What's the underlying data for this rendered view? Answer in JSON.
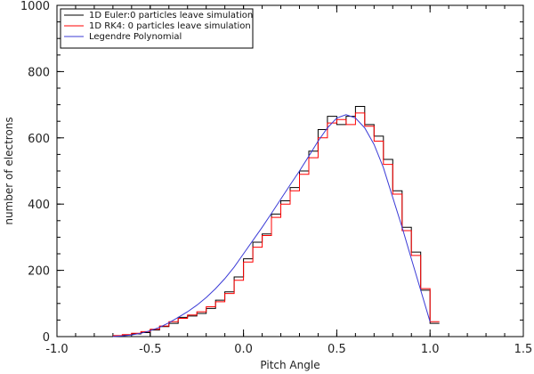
{
  "chart_data": {
    "type": "line",
    "xlabel": "Pitch Angle",
    "ylabel": "number of electrons",
    "xlim": [
      -1.0,
      1.5
    ],
    "ylim": [
      0,
      1000
    ],
    "x_ticks": [
      "-1.0",
      "-0.5",
      "0.0",
      "0.5",
      "1.0",
      "1.5"
    ],
    "y_ticks": [
      "0",
      "200",
      "400",
      "600",
      "800",
      "1000"
    ],
    "legend_position": "top-left",
    "bin_edges": [
      -0.7,
      -0.65,
      -0.6,
      -0.55,
      -0.5,
      -0.45,
      -0.4,
      -0.35,
      -0.3,
      -0.25,
      -0.2,
      -0.15,
      -0.1,
      -0.05,
      0.0,
      0.05,
      0.1,
      0.15,
      0.2,
      0.25,
      0.3,
      0.35,
      0.4,
      0.45,
      0.5,
      0.55,
      0.6,
      0.65,
      0.7,
      0.75,
      0.8,
      0.85,
      0.9,
      0.95,
      1.0
    ],
    "series": [
      {
        "name": "1D Euler:0 particles leave simulation",
        "color": "#000000",
        "style": "step",
        "values": [
          2,
          5,
          8,
          12,
          20,
          30,
          40,
          58,
          62,
          70,
          85,
          110,
          135,
          180,
          235,
          285,
          310,
          370,
          410,
          450,
          500,
          560,
          625,
          665,
          640,
          665,
          695,
          640,
          605,
          535,
          440,
          330,
          255,
          140,
          40
        ]
      },
      {
        "name": "1D RK4: 0 particles leave simulation",
        "color": "#ff0000",
        "style": "step",
        "values": [
          3,
          6,
          10,
          15,
          22,
          32,
          45,
          55,
          65,
          75,
          90,
          105,
          130,
          170,
          225,
          270,
          305,
          360,
          400,
          440,
          490,
          540,
          600,
          645,
          655,
          640,
          675,
          635,
          590,
          520,
          430,
          320,
          245,
          145,
          45
        ]
      },
      {
        "name": "Legendre Polynomial",
        "color": "#3b3bd6",
        "style": "smooth",
        "x": [
          -0.7,
          -0.65,
          -0.6,
          -0.55,
          -0.5,
          -0.45,
          -0.4,
          -0.35,
          -0.3,
          -0.25,
          -0.2,
          -0.15,
          -0.1,
          -0.05,
          0.0,
          0.05,
          0.1,
          0.15,
          0.2,
          0.25,
          0.3,
          0.35,
          0.4,
          0.45,
          0.5,
          0.55,
          0.6,
          0.65,
          0.7,
          0.75,
          0.8,
          0.85,
          0.9,
          0.95,
          1.0
        ],
        "values": [
          0,
          2,
          5,
          10,
          18,
          28,
          42,
          58,
          75,
          95,
          118,
          145,
          175,
          210,
          250,
          290,
          330,
          372,
          415,
          458,
          500,
          545,
          590,
          630,
          660,
          670,
          660,
          630,
          580,
          510,
          420,
          330,
          235,
          140,
          45
        ]
      }
    ]
  }
}
